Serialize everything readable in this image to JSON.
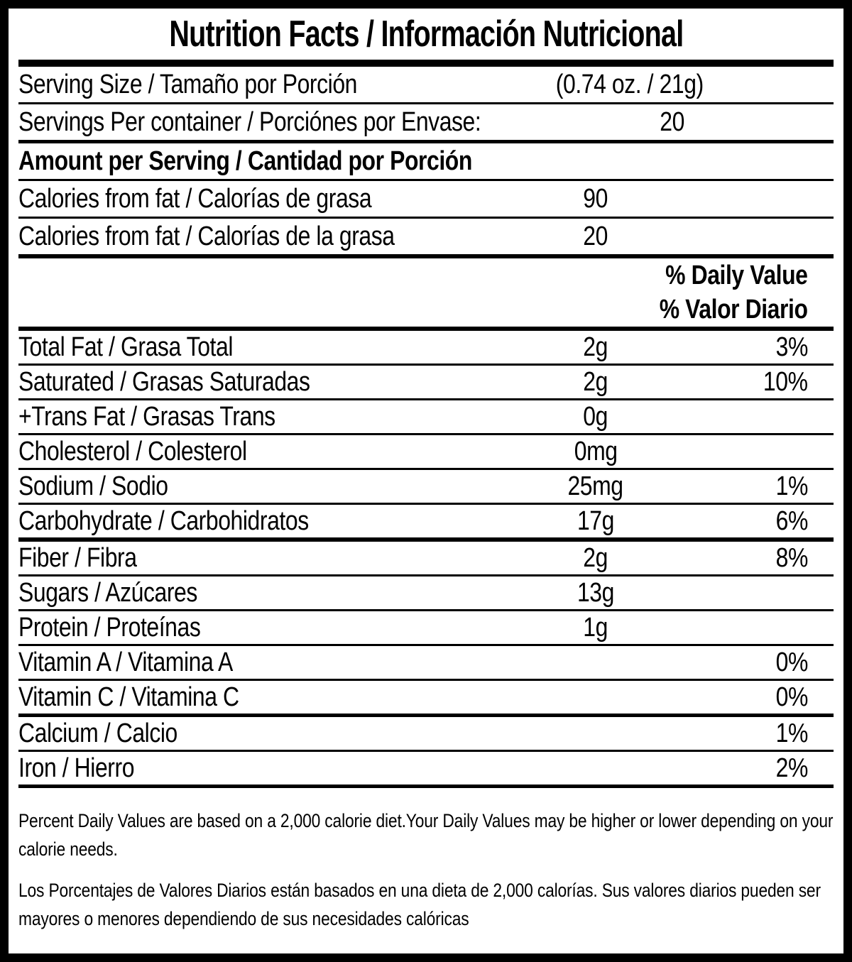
{
  "colors": {
    "ink": "#000000",
    "paper": "#ffffff"
  },
  "title": "Nutrition Facts / Información Nutricional",
  "serving": {
    "size": {
      "label": "Serving Size / Tamaño por Porción",
      "value": "(0.74 oz. / 21g)"
    },
    "per_container": {
      "label": "Servings Per container / Porciónes por Envase:",
      "value": "20"
    }
  },
  "amount_per_serving_header": "Amount per Serving / Cantidad por Porción",
  "calories": [
    {
      "label": "Calories from fat / Calorías de grasa",
      "value": "90"
    },
    {
      "label": "Calories from fat / Calorías de la grasa",
      "value": "20"
    }
  ],
  "daily_value_header": {
    "en": "% Daily Value",
    "es": "% Valor Diario"
  },
  "nutrients": [
    {
      "label": "Total Fat / Grasa Total",
      "amount": "2g",
      "percent": "3%"
    },
    {
      "label": "Saturated / Grasas Saturadas",
      "amount": "2g",
      "percent": "10%"
    },
    {
      "label": "+Trans Fat / Grasas Trans",
      "amount": "0g",
      "percent": ""
    },
    {
      "label": "Cholesterol / Colesterol",
      "amount": "0mg",
      "percent": ""
    },
    {
      "label": "Sodium / Sodio",
      "amount": "25mg",
      "percent": "1%"
    },
    {
      "label": "Carbohydrate / Carbohidratos",
      "amount": "17g",
      "percent": "6%"
    },
    {
      "label": "Fiber / Fibra",
      "amount": "2g",
      "percent": "8%"
    },
    {
      "label": "Sugars / Azúcares",
      "amount": "13g",
      "percent": ""
    },
    {
      "label": "Protein / Proteínas",
      "amount": "1g",
      "percent": ""
    },
    {
      "label": "Vitamin A / Vitamina A",
      "amount": "",
      "percent": "0%"
    },
    {
      "label": "Vitamin C / Vitamina C",
      "amount": "",
      "percent": "0%"
    },
    {
      "label": "Calcium / Calcio",
      "amount": "",
      "percent": "1%"
    },
    {
      "label": "Iron / Hierro",
      "amount": "",
      "percent": "2%"
    }
  ],
  "footnotes": {
    "en": "Percent Daily Values are based on a 2,000 calorie diet.Your Daily Values may be higher or lower depending on your calorie needs.",
    "es": "Los Porcentajes de Valores Diarios están basados en una dieta de 2,000 calorías. Sus valores diarios pueden ser mayores o menores dependiendo de sus necesidades calóricas"
  }
}
